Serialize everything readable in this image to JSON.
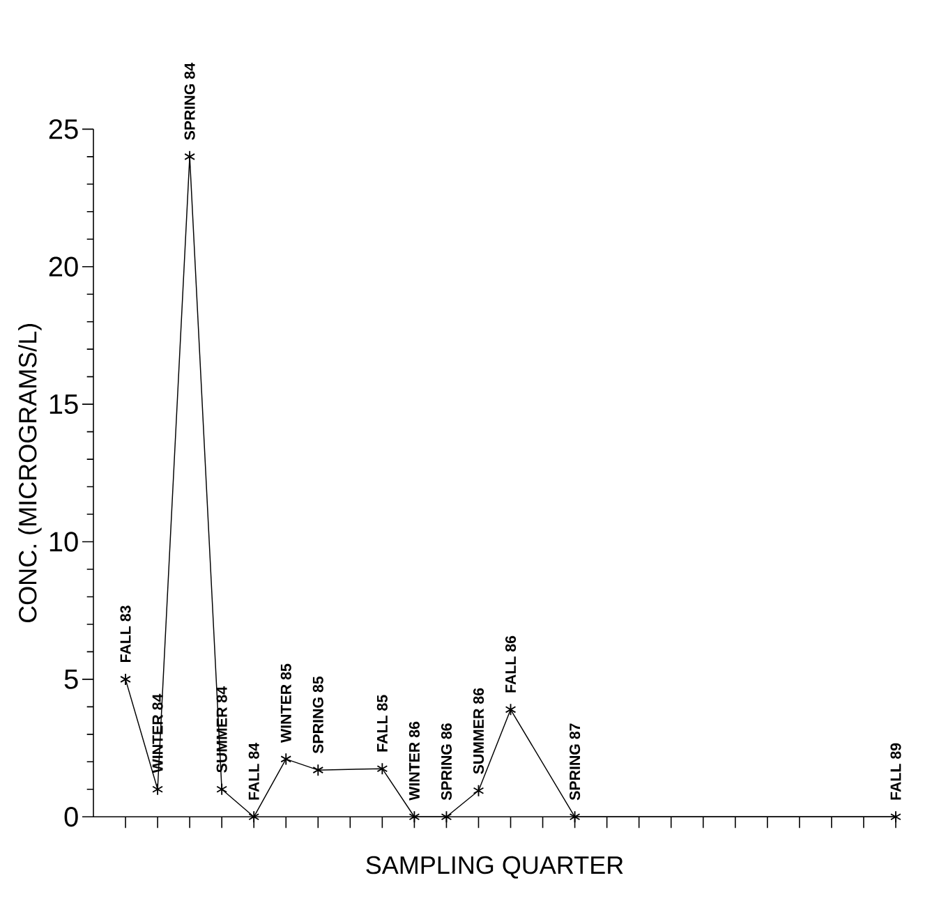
{
  "chart_data": {
    "type": "line",
    "xlabel": "SAMPLING QUARTER",
    "ylabel": "CONC. (MICROGRAMS/L)",
    "categories": [
      null,
      null,
      null,
      null,
      null,
      null,
      null,
      null,
      null,
      null,
      null,
      null,
      null,
      null,
      null,
      null,
      null,
      null,
      null,
      null,
      null,
      null,
      null,
      null,
      null
    ],
    "values": [
      5,
      1,
      24,
      1,
      0,
      2.1,
      1.7,
      null,
      1.75,
      0,
      0,
      0.95,
      3.9,
      null,
      0,
      null,
      null,
      null,
      null,
      null,
      null,
      null,
      null,
      null,
      0
    ],
    "value_labels": [
      "FALL 83",
      "WINTER 84",
      "SPRING 84",
      "SUMMER 84",
      "FALL 84",
      "WINTER 85",
      "SPRING 85",
      null,
      "FALL 85",
      "WINTER 86",
      "SPRING 86",
      "SUMMER 86",
      "FALL 86",
      null,
      "SPRING 87",
      null,
      null,
      null,
      null,
      null,
      null,
      null,
      null,
      null,
      "FALL 89"
    ],
    "color": "#000000",
    "marker": "cross",
    "line_style": "solid",
    "tick_labels": "y",
    "ylim": [
      0,
      25
    ],
    "yticks": [
      0,
      5,
      10,
      15,
      20,
      25
    ]
  }
}
